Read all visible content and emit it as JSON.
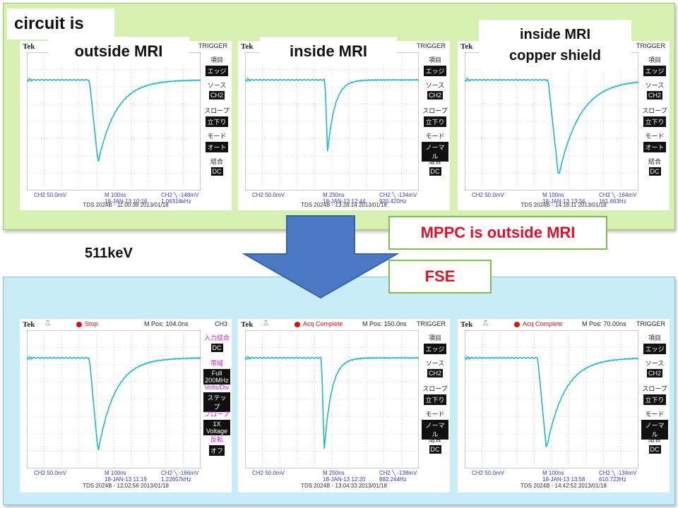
{
  "labels": {
    "circuit": "circuit is",
    "outside": "outside MRI",
    "inside": "inside MRI",
    "shield_line1": "inside MRI",
    "shield_line2": "copper shield",
    "mppc": "MPPC is outside MRI",
    "fse": "FSE",
    "energy": "511keV"
  },
  "colors": {
    "trace": "#20b8c8",
    "grid": "#9aa9b0",
    "top_panel": "#d5f0b0",
    "bottom_panel": "#c8ecf8",
    "callout_text": "#e0102a"
  },
  "top_scopes": [
    {
      "brand": "Tek",
      "menu_title": "TRIGGER",
      "menu": [
        {
          "label": "項目",
          "value": "エッジ"
        },
        {
          "label": "ソース",
          "value": "CH2"
        },
        {
          "label": "スロープ",
          "value": "立下り"
        },
        {
          "label": "モード",
          "value": "オート"
        },
        {
          "label": "結合",
          "value": "DC"
        }
      ],
      "ch": "CH2  50.0mV",
      "time": "M 100ns",
      "date": "18-JAN-13 10:16",
      "trig": "CH2 ╲ -148mV",
      "freq": "1.06316kHz",
      "footer": "TDS 2024B - 11:00:38   2013/01/18",
      "marker": "2▸"
    },
    {
      "brand": "Tek",
      "menu_title": "TRIGGER",
      "menu": [
        {
          "label": "項目",
          "value": "エッジ"
        },
        {
          "label": "ソース",
          "value": "CH2"
        },
        {
          "label": "スロープ",
          "value": "立下り"
        },
        {
          "label": "モード",
          "value": "ノーマル"
        },
        {
          "label": "結合",
          "value": "DC"
        }
      ],
      "ch": "CH2  50.0mV",
      "time": "M 250ns",
      "date": "18-JAN-13 12:44",
      "trig": "CH2 ╲ -134mV",
      "freq": "920.420Hz",
      "footer": "TDS 2024B - 13:28:14   2013/01/18",
      "marker": "2▸"
    },
    {
      "brand": "Tek",
      "menu_title": "TRIGGER",
      "menu": [
        {
          "label": "項目",
          "value": "エッジ"
        },
        {
          "label": "ソース",
          "value": "CH2"
        },
        {
          "label": "スロープ",
          "value": "立下り"
        },
        {
          "label": "モード",
          "value": "オート"
        },
        {
          "label": "結合",
          "value": "DC"
        }
      ],
      "ch": "CH2  50.0mV",
      "time": "M 100ns",
      "date": "18-JAN-13 13:34",
      "trig": "CH2 ╲ -164mV",
      "freq": "161.663Hz",
      "footer": "TDS 2024B - 14:18:11   2013/01/18",
      "marker": "2▸"
    }
  ],
  "bottom_scopes": [
    {
      "brand": "Tek",
      "status": "Stop",
      "mpos": "M Pos: 104.0ns",
      "menu_title": "CH3",
      "menu": [
        {
          "label": "入力結合",
          "value": "DC"
        },
        {
          "label": "帯域",
          "value": "Full 200MHz"
        },
        {
          "label": "Volts/Div",
          "value": "ステップ"
        },
        {
          "label": "プローブ",
          "value": "1X Voltage"
        },
        {
          "label": "反転",
          "value": "オフ"
        }
      ],
      "ch": "CH2  50.0mV",
      "time": "M 100ns",
      "date": "18-JAN-13 11:19",
      "trig": "CH2 ╲ -166mV",
      "freq": "1.22657kHz",
      "footer": "TDS 2024B - 12:02:56   2013/01/18",
      "marker": "2▸"
    },
    {
      "brand": "Tek",
      "status": "Acq Complete",
      "mpos": "M Pos: 150.0ns",
      "menu_title": "TRIGGER",
      "menu": [
        {
          "label": "項目",
          "value": "エッジ"
        },
        {
          "label": "ソース",
          "value": "CH2"
        },
        {
          "label": "スロープ",
          "value": "立下り"
        },
        {
          "label": "モード",
          "value": "ノーマル"
        },
        {
          "label": "結合",
          "value": "DC"
        }
      ],
      "ch": "CH2  50.0mV",
      "time": "M 250ns",
      "date": "18-JAN-13 12:20",
      "trig": "CH2 ╲ -138mV",
      "freq": "882.244Hz",
      "footer": "TDS 2024B - 13:04:33   2013/01/18",
      "marker": "2▸"
    },
    {
      "brand": "Tek",
      "status": "Acq Complete",
      "mpos": "M Pos: 70.00ns",
      "menu_title": "TRIGGER",
      "menu": [
        {
          "label": "項目",
          "value": "エッジ"
        },
        {
          "label": "ソース",
          "value": "CH2"
        },
        {
          "label": "スロープ",
          "value": "立下り"
        },
        {
          "label": "モード",
          "value": "ノーマル"
        },
        {
          "label": "結合",
          "value": "DC"
        }
      ],
      "ch": "CH2  50.0mV",
      "time": "M 100ns",
      "date": "18-JAN-13 13:58",
      "trig": "CH2 ╲ -134mV",
      "freq": "610.723Hz",
      "footer": "TDS 2024B - 14:42:52   2013/01/18",
      "marker": "2▸"
    }
  ]
}
